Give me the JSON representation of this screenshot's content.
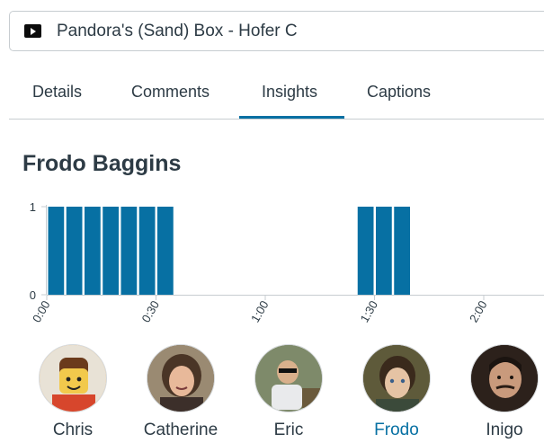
{
  "video": {
    "title": "Pandora's (Sand) Box - Hofer C",
    "icon": "play-video-icon"
  },
  "tabs": [
    {
      "label": "Details",
      "active": false
    },
    {
      "label": "Comments",
      "active": false
    },
    {
      "label": "Insights",
      "active": true
    },
    {
      "label": "Captions",
      "active": false
    }
  ],
  "insights": {
    "person_name": "Frodo Baggins"
  },
  "chart_data": {
    "type": "bar",
    "title": "",
    "xlabel": "",
    "ylabel": "",
    "ylim": [
      0,
      1
    ],
    "y_ticks": [
      "0",
      "1"
    ],
    "x_ticks": [
      "0:00",
      "0:30",
      "1:00",
      "1:30",
      "2:00"
    ],
    "x_tick_seconds": [
      0,
      30,
      60,
      90,
      120
    ],
    "bin_seconds": 5,
    "x_range_seconds": [
      0,
      136
    ],
    "bars": [
      {
        "start": 0,
        "value": 1
      },
      {
        "start": 5,
        "value": 1
      },
      {
        "start": 10,
        "value": 1
      },
      {
        "start": 15,
        "value": 1
      },
      {
        "start": 20,
        "value": 1
      },
      {
        "start": 25,
        "value": 1
      },
      {
        "start": 30,
        "value": 1
      },
      {
        "start": 85,
        "value": 1
      },
      {
        "start": 90,
        "value": 1
      },
      {
        "start": 95,
        "value": 1
      }
    ],
    "bar_color": "#0770a3",
    "axis_color": "#c7cdd1"
  },
  "viewers": [
    {
      "name": "Chris",
      "avatar": "lego-figure-avatar",
      "active": false,
      "bg": "#f0a64a",
      "face": "#f2c94c"
    },
    {
      "name": "Catherine",
      "avatar": "woman-photo-avatar",
      "active": false,
      "bg": "#6b5a4a",
      "face": "#e8b99a"
    },
    {
      "name": "Eric",
      "avatar": "man-sunglasses-avatar",
      "active": false,
      "bg": "#8a8f7a",
      "face": "#d9b08c"
    },
    {
      "name": "Frodo",
      "avatar": "frodo-photo-avatar",
      "active": true,
      "bg": "#5a4b34",
      "face": "#e5c3a4"
    },
    {
      "name": "Inigo",
      "avatar": "inigo-photo-avatar",
      "active": false,
      "bg": "#3a2a22",
      "face": "#c99a7c"
    }
  ],
  "colors": {
    "accent": "#0770a3",
    "text": "#2d3b45",
    "border": "#c7cdd1"
  }
}
